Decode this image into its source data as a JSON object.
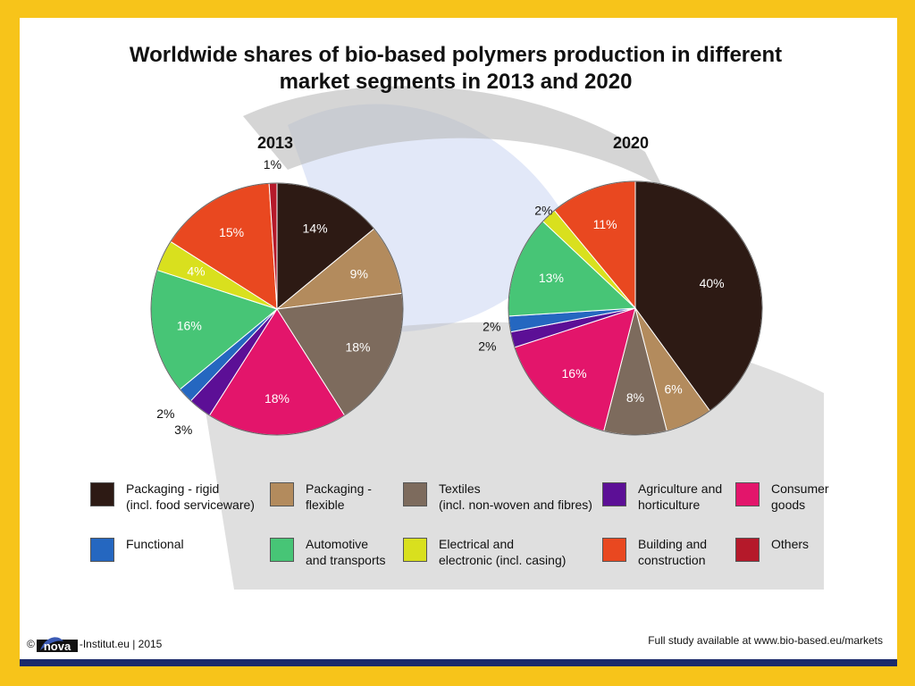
{
  "title": {
    "line1": "Worldwide shares of bio-based polymers production in different",
    "line2": "market segments in 2013 and 2020"
  },
  "colors": {
    "frame": "#f7c41a",
    "bottom_bar": "#1b2a6b",
    "watermark_gray": "#b9b9b9",
    "watermark_blue": "#dfe6f7"
  },
  "chart_data": [
    {
      "type": "pie",
      "title": "2013",
      "categories": [
        "Packaging - rigid (incl. food serviceware)",
        "Packaging - flexible",
        "Textiles (incl. non-woven and fibres)",
        "Consumer goods",
        "Agriculture and horticulture",
        "Functional",
        "Automotive and transports",
        "Electrical and electronic (incl. casing)",
        "Building and construction",
        "Others"
      ],
      "values": [
        14,
        9,
        18,
        18,
        3,
        2,
        16,
        4,
        15,
        1
      ],
      "labels": [
        "14%",
        "9%",
        "18%",
        "18%",
        "3%",
        "2%",
        "16%",
        "4%",
        "15%",
        "1%"
      ]
    },
    {
      "type": "pie",
      "title": "2020",
      "categories": [
        "Packaging - rigid (incl. food serviceware)",
        "Packaging - flexible",
        "Textiles (incl. non-woven and fibres)",
        "Consumer goods",
        "Agriculture and horticulture",
        "Functional",
        "Automotive and transports",
        "Electrical and electronic (incl. casing)",
        "Building and construction"
      ],
      "values": [
        40,
        6,
        8,
        16,
        2,
        2,
        13,
        2,
        11
      ],
      "labels": [
        "40%",
        "6%",
        "8%",
        "16%",
        "2%",
        "2%",
        "13%",
        "2%",
        "11%"
      ]
    }
  ],
  "legend": [
    {
      "label": "Packaging - rigid\n(incl. food serviceware)",
      "color": "#2d1a14"
    },
    {
      "label": "Packaging -\nflexible",
      "color": "#b38b5d"
    },
    {
      "label": "Textiles\n(incl. non-woven and fibres)",
      "color": "#7d6b5d"
    },
    {
      "label": "Agriculture and\nhorticulture",
      "color": "#5c0f96"
    },
    {
      "label": "Consumer\ngoods",
      "color": "#e3156b"
    },
    {
      "label": "Functional",
      "color": "#2567c0"
    },
    {
      "label": "Automotive\nand transports",
      "color": "#47c576"
    },
    {
      "label": "Electrical and\nelectronic (incl. casing)",
      "color": "#d9e01e"
    },
    {
      "label": "Building and\nconstruction",
      "color": "#e94820"
    },
    {
      "label": "Others",
      "color": "#b5192a"
    }
  ],
  "footer": {
    "copyright": "©",
    "logo_text": "nova",
    "institute": "-Institut.eu | 2015",
    "study_note": "Full study available at www.bio-based.eu/markets"
  }
}
